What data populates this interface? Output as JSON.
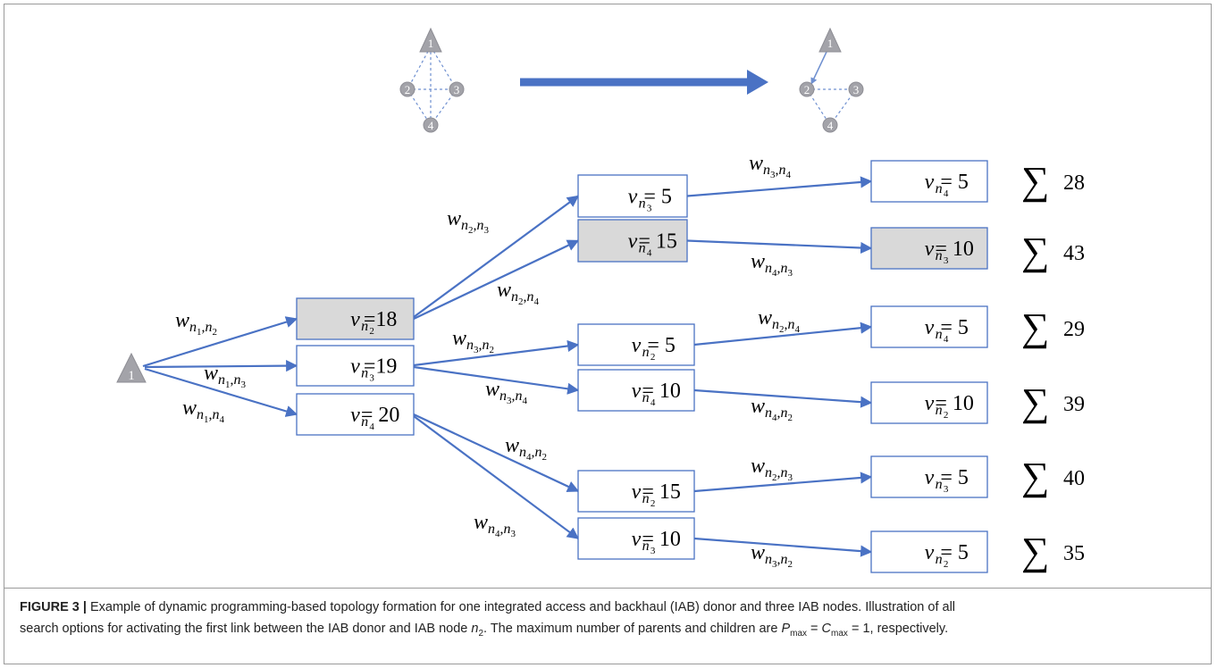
{
  "top_graphs": [
    {
      "nodes": [
        "1",
        "2",
        "3",
        "4"
      ]
    },
    {
      "nodes": [
        "1",
        "2",
        "3",
        "4"
      ]
    }
  ],
  "root": {
    "label": "1"
  },
  "nodes": [
    {
      "var": "v",
      "index": "n",
      "sub": "2",
      "value": "=18"
    },
    {
      "var": "v",
      "index": "n",
      "sub": "3",
      "value": "=19"
    },
    {
      "var": "v",
      "index": "n",
      "sub": "4",
      "value": "= 20"
    },
    {
      "var": "v",
      "index": "n",
      "sub": "3",
      "value": "= 5"
    },
    {
      "var": "v",
      "index": "n",
      "sub": "4",
      "value": "= 15"
    },
    {
      "var": "v",
      "index": "n",
      "sub": "2",
      "value": "= 5"
    },
    {
      "var": "v",
      "index": "n",
      "sub": "4",
      "value": "= 10"
    },
    {
      "var": "v",
      "index": "n",
      "sub": "2",
      "value": "= 15"
    },
    {
      "var": "v",
      "index": "n",
      "sub": "3",
      "value": "= 10"
    },
    {
      "var": "v",
      "index": "n",
      "sub": "4",
      "value": "= 5"
    },
    {
      "var": "v",
      "index": "n",
      "sub": "3",
      "value": "= 10"
    },
    {
      "var": "v",
      "index": "n",
      "sub": "4",
      "value": "= 5"
    },
    {
      "var": "v",
      "index": "n",
      "sub": "2",
      "value": "= 10"
    },
    {
      "var": "v",
      "index": "n",
      "sub": "3",
      "value": "= 5"
    },
    {
      "var": "v",
      "index": "n",
      "sub": "2",
      "value": "= 5"
    }
  ],
  "edges": [
    {
      "var": "w",
      "index": "n",
      "from": "1",
      "sep": ",",
      "to": "2"
    },
    {
      "var": "w",
      "index": "n",
      "from": "1",
      "sep": ",",
      "to": "3"
    },
    {
      "var": "w",
      "index": "n",
      "from": "1",
      "sep": ",",
      "to": "4"
    },
    {
      "var": "w",
      "index": "n",
      "from": "2",
      "sep": ",",
      "to": "3"
    },
    {
      "var": "w",
      "index": "n",
      "from": "2",
      "sep": ",",
      "to": "4"
    },
    {
      "var": "w",
      "index": "n",
      "from": "3",
      "sep": ",",
      "to": "2"
    },
    {
      "var": "w",
      "index": "n",
      "from": "3",
      "sep": ",",
      "to": "4"
    },
    {
      "var": "w",
      "index": "n",
      "from": "4",
      "sep": ",",
      "to": "2"
    },
    {
      "var": "w",
      "index": "n",
      "from": "4",
      "sep": ",",
      "to": "3"
    },
    {
      "var": "w",
      "index": "n",
      "from": "3",
      "sep": ",",
      "to": "4"
    },
    {
      "var": "w",
      "index": "n",
      "from": "4",
      "sep": ",",
      "to": "3"
    },
    {
      "var": "w",
      "index": "n",
      "from": "2",
      "sep": ",",
      "to": "4"
    },
    {
      "var": "w",
      "index": "n",
      "from": "4",
      "sep": ",",
      "to": "2"
    },
    {
      "var": "w",
      "index": "n",
      "from": "2",
      "sep": ",",
      "to": "3"
    },
    {
      "var": "w",
      "index": "n",
      "from": "3",
      "sep": ",",
      "to": "2"
    }
  ],
  "sums": [
    {
      "symbol": "∑",
      "value": 28
    },
    {
      "symbol": "∑",
      "value": 43
    },
    {
      "symbol": "∑",
      "value": 29
    },
    {
      "symbol": "∑",
      "value": 39
    },
    {
      "symbol": "∑",
      "value": 40
    },
    {
      "symbol": "∑",
      "value": 35
    }
  ],
  "caption": {
    "label": "FIGURE 3 |",
    "line1": " Example of dynamic programming-based topology formation for one integrated access and backhaul (IAB) donor and three IAB nodes. Illustration of all",
    "line2a": "search options for activating the first link between the IAB donor and IAB node ",
    "n": "n",
    "n_sub": "2",
    "line2b": ". The maximum number of parents and children are ",
    "p": "P",
    "p_sub": "max",
    "eq1": " = ",
    "c": "C",
    "c_sub": "max",
    "line2c": " = 1, respectively."
  }
}
